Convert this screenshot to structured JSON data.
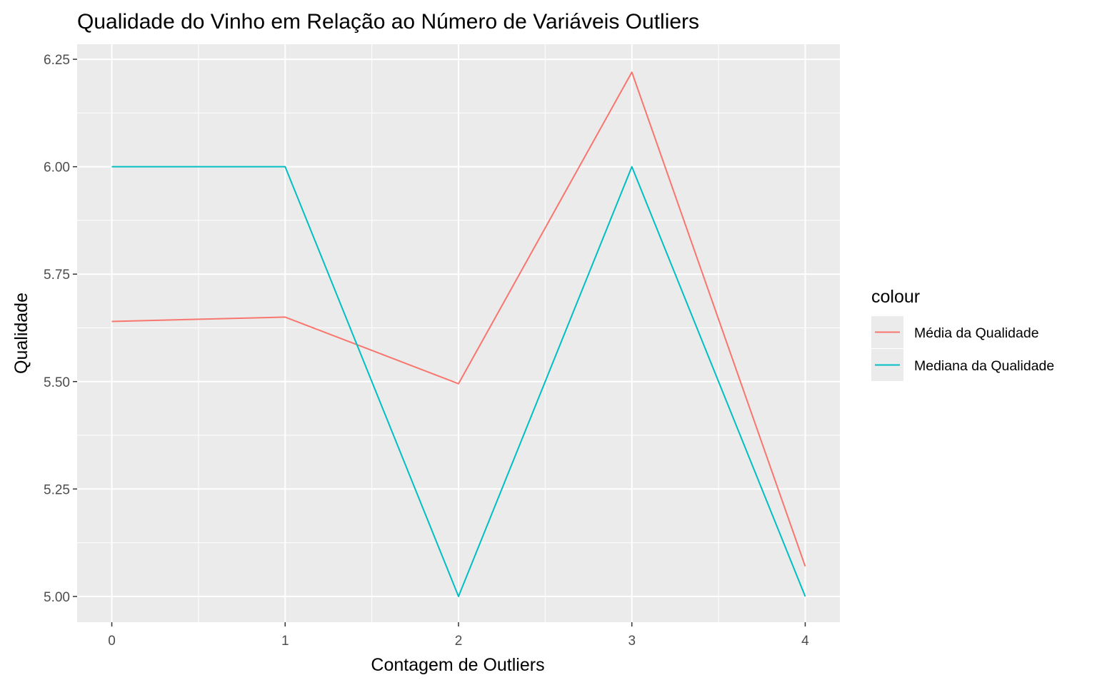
{
  "chart_data": {
    "type": "line",
    "title": "Qualidade do Vinho em Relação ao Número de Variáveis Outliers",
    "xlabel": "Contagem de Outliers",
    "ylabel": "Qualidade",
    "x": [
      0,
      1,
      2,
      3,
      4
    ],
    "x_tick_labels": [
      "0",
      "1",
      "2",
      "3",
      "4"
    ],
    "y_ticks": [
      5.0,
      5.25,
      5.5,
      5.75,
      6.0,
      6.25
    ],
    "y_tick_labels": [
      "5.00",
      "5.25",
      "5.50",
      "5.75",
      "6.00",
      "6.25"
    ],
    "xlim": [
      -0.2,
      4.2
    ],
    "ylim": [
      4.94,
      6.285
    ],
    "grid": true,
    "legend": {
      "title": "colour",
      "placement": "right"
    },
    "series": [
      {
        "name": "Média da Qualidade",
        "color": "#F8766D",
        "values": [
          5.64,
          5.65,
          5.495,
          6.22,
          5.07
        ]
      },
      {
        "name": "Mediana da Qualidade",
        "color": "#00BFC4",
        "values": [
          6.0,
          6.0,
          5.0,
          6.0,
          5.0
        ]
      }
    ],
    "panel_background": "#EBEBEB",
    "grid_color": "#FFFFFF"
  }
}
